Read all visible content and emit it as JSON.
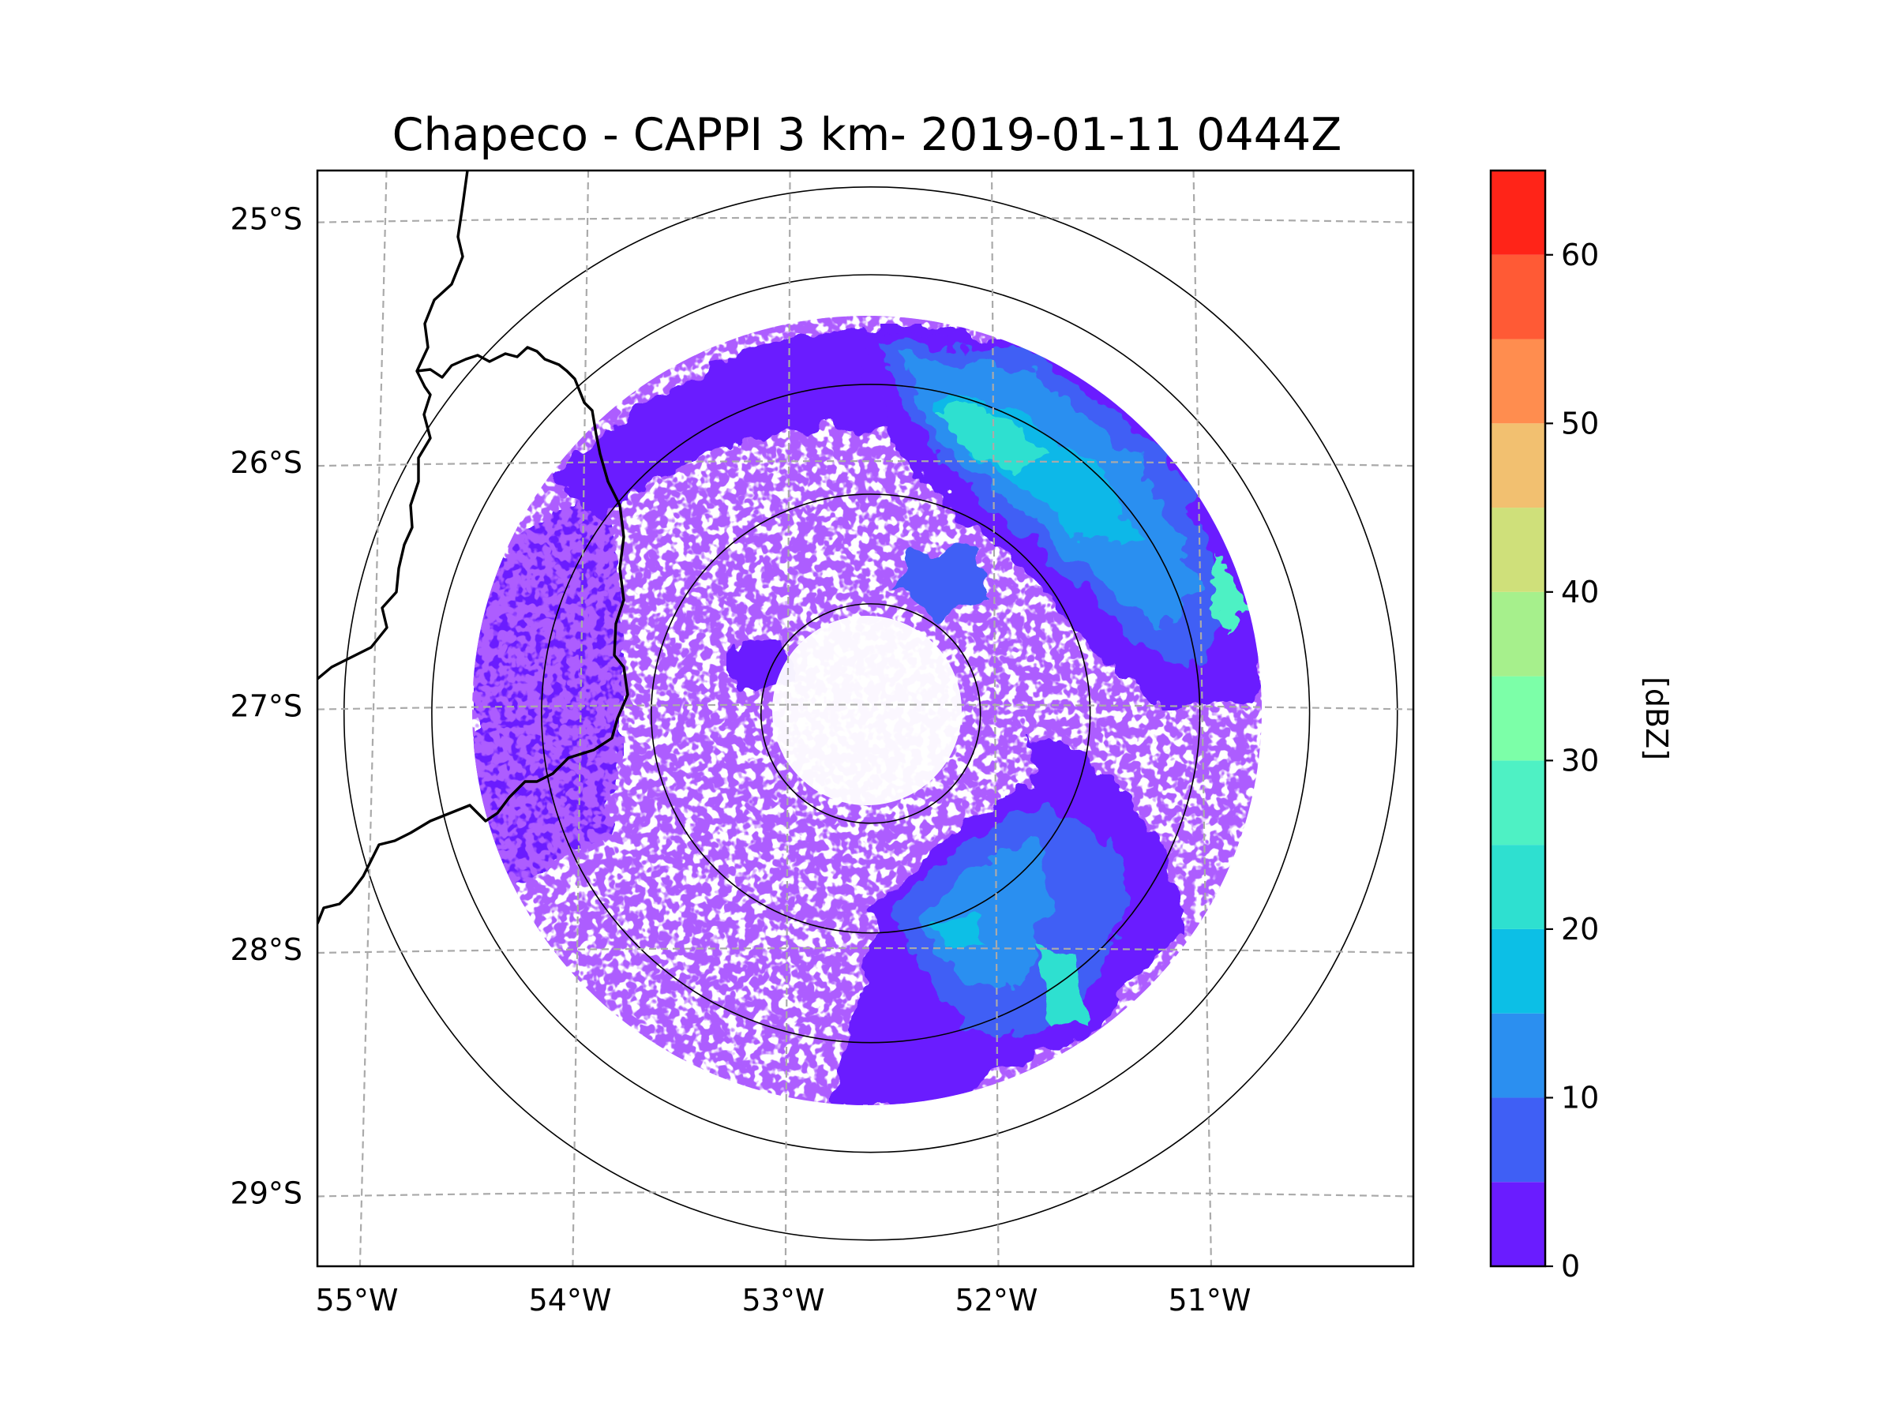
{
  "chart_data": {
    "type": "radar-ppi-map",
    "title": "Chapeco - CAPPI 3 km- 2019-01-11 0444Z",
    "radar": {
      "name": "Chapeco",
      "product": "CAPPI",
      "altitude_km": 3,
      "date": "2019-01-11",
      "time": "0444Z",
      "center_lon": -52.6,
      "center_lat": -27.03,
      "range_rings_km": [
        50,
        100,
        150,
        200,
        240
      ],
      "data_max_range_km": 180
    },
    "lon_ticks": [
      {
        "value": -55,
        "label": "55°W"
      },
      {
        "value": -54,
        "label": "54°W"
      },
      {
        "value": -53,
        "label": "53°W"
      },
      {
        "value": -52,
        "label": "52°W"
      },
      {
        "value": -51,
        "label": "51°W"
      }
    ],
    "lat_ticks": [
      {
        "value": -25,
        "label": "25°S"
      },
      {
        "value": -26,
        "label": "26°S"
      },
      {
        "value": -27,
        "label": "27°S"
      },
      {
        "value": -28,
        "label": "28°S"
      },
      {
        "value": -29,
        "label": "29°S"
      }
    ],
    "lon_range": [
      -55.2,
      -50.05
    ],
    "lat_range": [
      -29.3,
      -24.8
    ],
    "gridlines": "dashed",
    "colorbar": {
      "label": "[dBZ]",
      "min": 0,
      "max": 65,
      "step": 5,
      "tick_labels": [
        "0",
        "10",
        "20",
        "30",
        "40",
        "50",
        "60"
      ],
      "colors": [
        "#6a1cff",
        "#3f5ff5",
        "#2b8ff0",
        "#0cbfe6",
        "#2ee0d0",
        "#4ef1c4",
        "#7cffa8",
        "#a6f08c",
        "#cfe07a",
        "#f2c070",
        "#ff8d4f",
        "#ff5a35",
        "#ff2418"
      ]
    },
    "echo_regions": [
      {
        "description": "northeast stratiform band",
        "dbz_range": [
          5,
          30
        ]
      },
      {
        "description": "south band",
        "dbz_range": [
          5,
          30
        ]
      },
      {
        "description": "west sector",
        "dbz_range": [
          0,
          10
        ]
      }
    ]
  }
}
